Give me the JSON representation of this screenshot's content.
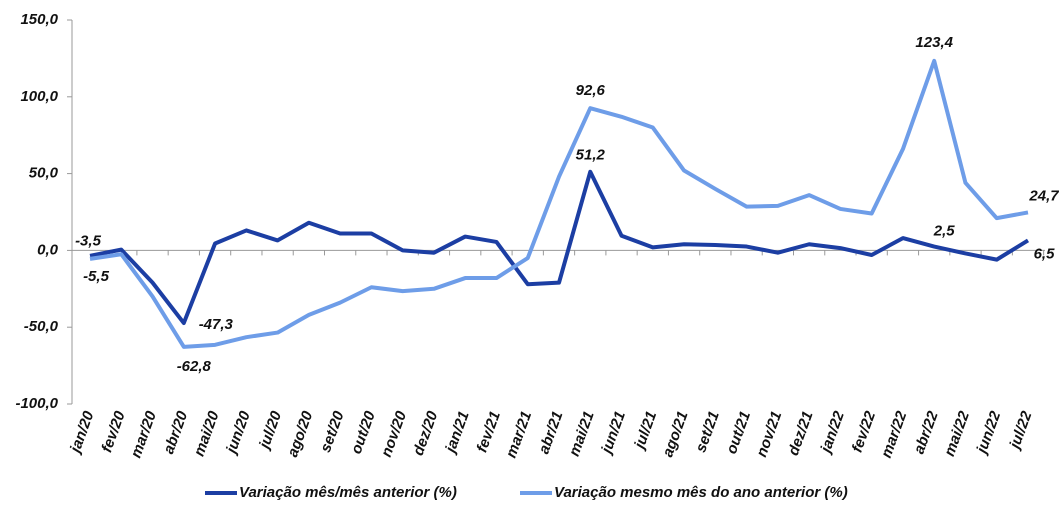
{
  "chart_data": {
    "type": "line",
    "categories": [
      "jan/20",
      "fev/20",
      "mar/20",
      "abr/20",
      "mai/20",
      "jun/20",
      "jul/20",
      "ago/20",
      "set/20",
      "out/20",
      "nov/20",
      "dez/20",
      "jan/21",
      "fev/21",
      "mar/21",
      "abr/21",
      "mai/21",
      "jun/21",
      "jul/21",
      "ago/21",
      "set/21",
      "out/21",
      "nov/21",
      "dez/21",
      "jan/22",
      "fev/22",
      "mar/22",
      "abr/22",
      "mai/22",
      "jun/22",
      "jul/22"
    ],
    "series": [
      {
        "name": "Variação mês/mês anterior (%)",
        "color": "#1c3ea3",
        "values": [
          -3.5,
          0.5,
          -21,
          -47.3,
          4.5,
          13,
          6.5,
          18,
          11,
          11,
          0,
          -1.5,
          9,
          5.5,
          -22,
          -21,
          51.2,
          9.5,
          2,
          4,
          3.5,
          2.5,
          -1.5,
          4,
          1.5,
          -3,
          8,
          2.5,
          -2,
          -6,
          6.5
        ],
        "value_labels": [
          "-3,5",
          null,
          null,
          "-47,3",
          null,
          null,
          null,
          null,
          null,
          null,
          null,
          null,
          null,
          null,
          null,
          null,
          "51,2",
          null,
          null,
          null,
          null,
          null,
          null,
          null,
          null,
          null,
          null,
          "2,5",
          null,
          null,
          "6,5"
        ]
      },
      {
        "name": "Variação mesmo mês do ano anterior (%)",
        "color": "#6e9de8",
        "values": [
          -5.5,
          -2.5,
          -30,
          -62.8,
          -61.5,
          -56.5,
          -53.5,
          -42,
          -34,
          -24,
          -26.5,
          -25,
          -18,
          -18,
          -5,
          48,
          92.6,
          87,
          80,
          52,
          40,
          28.5,
          29,
          36,
          27,
          24,
          66,
          123.4,
          44,
          21,
          24.7
        ],
        "value_labels": [
          "-5,5",
          null,
          null,
          "-62,8",
          null,
          null,
          null,
          null,
          null,
          null,
          null,
          null,
          null,
          null,
          null,
          null,
          "92,6",
          null,
          null,
          null,
          null,
          null,
          null,
          null,
          null,
          null,
          null,
          "123,4",
          null,
          null,
          "24,7"
        ]
      }
    ],
    "ylim": [
      -100,
      150
    ],
    "yticks": [
      {
        "value": -100,
        "label": "-100,0"
      },
      {
        "value": -50,
        "label": "-50,0"
      },
      {
        "value": 0,
        "label": "0,0"
      },
      {
        "value": 50,
        "label": "50,0"
      },
      {
        "value": 100,
        "label": "100,0"
      },
      {
        "value": 150,
        "label": "150,0"
      }
    ]
  }
}
